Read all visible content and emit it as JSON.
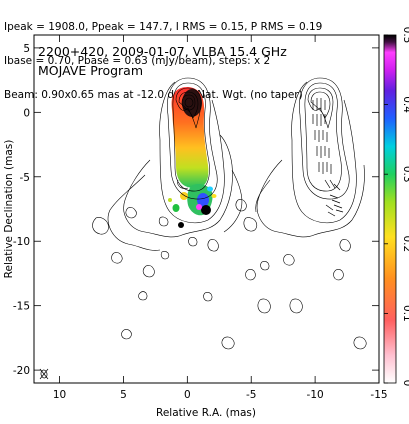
{
  "header": {
    "line1": "Ipeak = 1908.0, Ppeak = 147.7, I RMS = 0.15, P RMS = 0.19",
    "line2": "Ibase = 0.70, Pbase = 0.63 (mJy/beam), steps: x 2",
    "line3": "Beam: 0.90x0.65 mas at -12.0 deg., Nat. Wgt. (no taper)"
  },
  "plot": {
    "title_line1": "2200+420, 2009-01-07, VLBA 15.4 GHz",
    "title_line2": "MOJAVE Program"
  },
  "chart_data": {
    "type": "contour",
    "xlabel": "Relative R.A. (mas)",
    "ylabel": "Relative Declination (mas)",
    "xlim": [
      12,
      -15
    ],
    "ylim": [
      -21,
      6
    ],
    "x_ticks": [
      10,
      5,
      0,
      -5,
      -10,
      -15
    ],
    "y_ticks": [
      5,
      0,
      -5,
      -10,
      -15,
      -20
    ],
    "colorbar": {
      "range": [
        0,
        0.5
      ],
      "ticks": [
        0,
        0.1,
        0.2,
        0.3,
        0.4,
        0.5
      ],
      "colors": [
        "#ffffff",
        "#ffb0c8",
        "#ff4040",
        "#ff9020",
        "#ffe020",
        "#80e020",
        "#00d080",
        "#00c8ff",
        "#2040ff",
        "#8020e0",
        "#ff20ff",
        "#000000"
      ]
    },
    "panels": [
      {
        "name": "",
        "content": "total intensity contours with fractional polarization color overlay"
      },
      {
        "name": "",
        "content": "total intensity contours with polarization vectors"
      }
    ]
  }
}
